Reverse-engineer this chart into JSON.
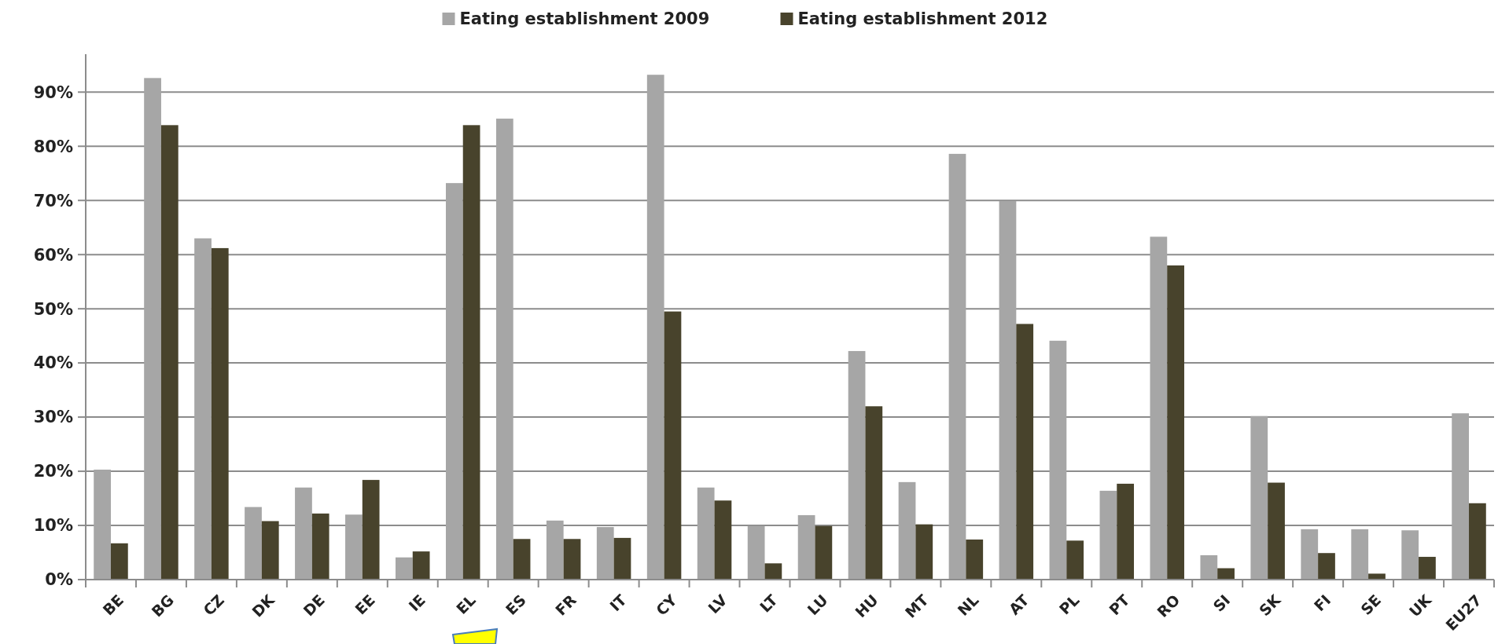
{
  "chart_data": {
    "type": "bar",
    "categories": [
      "BE",
      "BG",
      "CZ",
      "DK",
      "DE",
      "EE",
      "IE",
      "EL",
      "ES",
      "FR",
      "IT",
      "CY",
      "LV",
      "LT",
      "LU",
      "HU",
      "MT",
      "NL",
      "AT",
      "PL",
      "PT",
      "RO",
      "SI",
      "SK",
      "FI",
      "SE",
      "UK",
      "EU27"
    ],
    "series": [
      {
        "name": "Eating establishment 2009",
        "color": "#a6a6a6",
        "values": [
          20.3,
          92.6,
          63.0,
          13.4,
          17.0,
          12.0,
          4.1,
          73.2,
          85.1,
          10.9,
          9.7,
          93.2,
          17.0,
          9.9,
          11.9,
          42.2,
          18.0,
          78.6,
          69.9,
          44.1,
          16.4,
          63.3,
          4.5,
          30.2,
          9.3,
          9.3,
          9.1,
          30.7
        ]
      },
      {
        "name": "Eating establishment 2012",
        "color": "#48432c",
        "values": [
          6.7,
          83.9,
          61.2,
          10.8,
          12.2,
          18.4,
          5.2,
          83.9,
          7.5,
          7.5,
          7.7,
          49.5,
          14.6,
          3.0,
          9.9,
          32.0,
          10.2,
          7.4,
          47.2,
          7.2,
          17.7,
          58.0,
          2.1,
          17.9,
          4.9,
          1.1,
          4.2,
          14.1
        ]
      }
    ],
    "ylim": [
      0,
      97
    ],
    "yticks": [
      {
        "value": 0,
        "label": "0%"
      },
      {
        "value": 10,
        "label": "10%"
      },
      {
        "value": 20,
        "label": "20%"
      },
      {
        "value": 30,
        "label": "30%"
      },
      {
        "value": 40,
        "label": "40%"
      },
      {
        "value": 50,
        "label": "50%"
      },
      {
        "value": 60,
        "label": "60%"
      },
      {
        "value": 70,
        "label": "70%"
      },
      {
        "value": 80,
        "label": "80%"
      },
      {
        "value": 90,
        "label": "90%"
      }
    ],
    "grid": "y",
    "legend": "top"
  }
}
